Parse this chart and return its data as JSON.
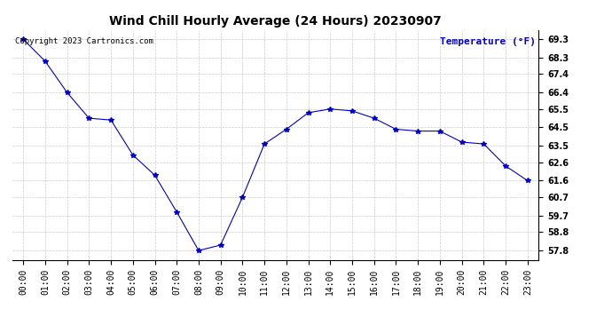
{
  "title": "Wind Chill Hourly Average (24 Hours) 20230907",
  "ylabel_text": "Temperature (°F)",
  "copyright_text": "Copyright 2023 Cartronics.com",
  "hours": [
    "00:00",
    "01:00",
    "02:00",
    "03:00",
    "04:00",
    "05:00",
    "06:00",
    "07:00",
    "08:00",
    "09:00",
    "10:00",
    "11:00",
    "12:00",
    "13:00",
    "14:00",
    "15:00",
    "16:00",
    "17:00",
    "18:00",
    "19:00",
    "20:00",
    "21:00",
    "22:00",
    "23:00"
  ],
  "values": [
    69.3,
    68.1,
    66.4,
    65.0,
    64.9,
    63.0,
    61.9,
    59.9,
    57.8,
    58.1,
    60.7,
    63.6,
    64.4,
    65.3,
    65.5,
    65.4,
    65.0,
    64.4,
    64.3,
    64.3,
    63.7,
    63.6,
    62.4,
    61.6
  ],
  "ylim_min": 57.3,
  "ylim_max": 69.8,
  "line_color": "#0000cc",
  "marker": "*",
  "marker_size": 4,
  "title_fontsize": 10,
  "ylabel_color": "#0000cc",
  "ylabel_fontsize": 8,
  "copyright_fontsize": 6.5,
  "tick_fontsize": 7,
  "background_color": "#ffffff",
  "grid_color": "#cccccc",
  "yticks": [
    57.8,
    58.8,
    59.7,
    60.7,
    61.6,
    62.6,
    63.5,
    64.5,
    65.5,
    66.4,
    67.4,
    68.3,
    69.3
  ]
}
